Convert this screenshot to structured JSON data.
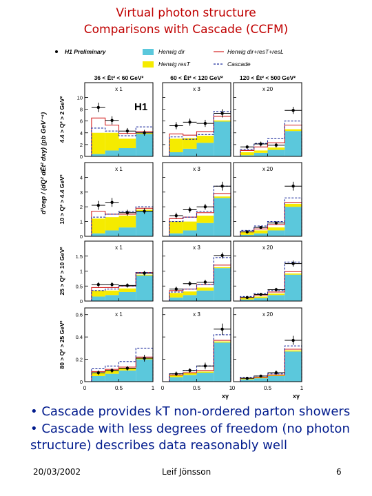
{
  "slide": {
    "title_line1": "Virtual photon structure",
    "title_line2": "Comparisons with Cascade (CCFM)",
    "bullet1": "• Cascade provides kT non-ordered parton showers",
    "bullet2": "• Cascade with less degrees of freedom (no photon structure) describes data reasonably well",
    "footer_date": "20/03/2002",
    "footer_author": "Leif Jönsson",
    "footer_page": "6"
  },
  "chart_data": {
    "type": "bar",
    "xlabel": "xγ",
    "ylabel": "d³σep / (dQ² dĒt² dxγ)  (pb GeV⁻⁴)",
    "logo": "H1",
    "legend": [
      {
        "name": "H1 Preliminary",
        "kind": "data",
        "color": "#000000"
      },
      {
        "name": "Herwig dir",
        "kind": "fill",
        "color": "#5bc8dc"
      },
      {
        "name": "Herwig resT",
        "kind": "fill",
        "color": "#f5eb00"
      },
      {
        "name": "Herwig dir+resT+resL",
        "kind": "line",
        "color": "#d42020"
      },
      {
        "name": "Cascade",
        "kind": "dashed",
        "color": "#1a2a9c"
      }
    ],
    "columns": [
      {
        "label": "36 < Ēt² < 60 GeV²",
        "multiplier": "x 1"
      },
      {
        "label": "60 < Ēt² < 120 GeV²",
        "multiplier": "x 3"
      },
      {
        "label": "120 < Ēt² < 500 GeV²",
        "multiplier": "x 20"
      }
    ],
    "rows": [
      {
        "label": "4.4 > Q² > 2 GeV²",
        "ylim": [
          0,
          12.5
        ],
        "yticks": [
          "0",
          "2",
          "4",
          "6",
          "8",
          "10"
        ]
      },
      {
        "label": "10 > Q² > 4.4 GeV²",
        "ylim": [
          0,
          5
        ],
        "yticks": [
          "0",
          "1",
          "2",
          "3",
          "4"
        ]
      },
      {
        "label": "25 > Q² > 10 GeV²",
        "ylim": [
          0,
          2
        ],
        "yticks": [
          "0",
          "0.5",
          "1",
          "1.5"
        ]
      },
      {
        "label": "80 > Q² > 25 GeV²",
        "ylim": [
          0,
          0.66
        ],
        "yticks": [
          "0",
          "0.2",
          "0.4",
          "0.6"
        ]
      }
    ],
    "xbins": [
      0.1,
      0.3,
      0.5,
      0.75,
      1.0
    ],
    "xticks": [
      "0",
      "0.5",
      "1"
    ],
    "panels": [
      [
        {
          "dir": [
            0.4,
            1.0,
            1.4,
            3.8
          ],
          "resT": [
            3.6,
            3.0,
            1.6,
            0.2
          ],
          "total": [
            6.5,
            5.3,
            3.9,
            4.2
          ],
          "cascade": [
            4.8,
            4.3,
            3.5,
            5.0
          ],
          "data": [
            8.3,
            6.1,
            4.3,
            4.0
          ],
          "err": [
            0.8,
            0.7,
            0.5,
            0.5
          ]
        },
        {
          "dir": [
            0.7,
            1.3,
            2.3,
            5.9
          ],
          "resT": [
            2.3,
            1.8,
            1.2,
            0.2
          ],
          "total": [
            3.8,
            3.6,
            4.2,
            6.8
          ],
          "cascade": [
            3.3,
            2.9,
            3.7,
            7.6
          ],
          "data": [
            5.2,
            5.8,
            5.6,
            7.3
          ],
          "err": [
            0.6,
            0.6,
            0.6,
            0.7
          ]
        },
        {
          "dir": [
            0.2,
            0.6,
            1.1,
            4.3
          ],
          "resT": [
            0.5,
            0.4,
            0.4,
            0.3
          ],
          "total": [
            1.0,
            1.6,
            2.3,
            5.3
          ],
          "cascade": [
            1.2,
            2.2,
            3.0,
            6.0
          ],
          "data": [
            1.6,
            2.1,
            1.9,
            7.8
          ],
          "err": [
            0.3,
            0.4,
            0.4,
            0.6
          ]
        }
      ],
      [
        {
          "dir": [
            0.2,
            0.4,
            0.6,
            1.7
          ],
          "resT": [
            1.0,
            0.9,
            0.8,
            0.1
          ],
          "total": [
            1.7,
            1.5,
            1.5,
            1.9
          ],
          "cascade": [
            1.3,
            1.5,
            1.7,
            2.0
          ],
          "data": [
            2.1,
            2.3,
            1.6,
            1.7
          ],
          "err": [
            0.3,
            0.3,
            0.2,
            0.2
          ]
        },
        {
          "dir": [
            0.2,
            0.4,
            0.9,
            2.6
          ],
          "resT": [
            0.8,
            0.6,
            0.5,
            0.1
          ],
          "total": [
            1.2,
            1.3,
            1.6,
            2.9
          ],
          "cascade": [
            1.0,
            1.3,
            1.7,
            3.4
          ],
          "data": [
            1.4,
            1.8,
            2.0,
            3.4
          ],
          "err": [
            0.2,
            0.2,
            0.2,
            0.3
          ]
        },
        {
          "dir": [
            0.1,
            0.2,
            0.4,
            2.0
          ],
          "resT": [
            0.2,
            0.2,
            0.2,
            0.2
          ],
          "total": [
            0.3,
            0.5,
            0.8,
            2.3
          ],
          "cascade": [
            0.4,
            0.7,
            1.0,
            2.6
          ],
          "data": [
            0.3,
            0.6,
            0.9,
            3.4
          ],
          "err": [
            0.1,
            0.1,
            0.1,
            0.3
          ]
        }
      ],
      [
        {
          "dir": [
            0.15,
            0.2,
            0.3,
            0.85
          ],
          "resT": [
            0.2,
            0.15,
            0.12,
            0.03
          ],
          "total": [
            0.45,
            0.45,
            0.5,
            0.95
          ],
          "cascade": [
            0.35,
            0.4,
            0.5,
            0.95
          ],
          "data": [
            0.55,
            0.55,
            0.52,
            0.93
          ],
          "err": [
            0.08,
            0.08,
            0.07,
            0.08
          ]
        },
        {
          "dir": [
            0.12,
            0.2,
            0.35,
            1.1
          ],
          "resT": [
            0.15,
            0.12,
            0.1,
            0.03
          ],
          "total": [
            0.35,
            0.4,
            0.55,
            1.2
          ],
          "cascade": [
            0.3,
            0.4,
            0.55,
            1.45
          ],
          "data": [
            0.4,
            0.58,
            0.63,
            1.52
          ],
          "err": [
            0.08,
            0.08,
            0.08,
            0.1
          ]
        },
        {
          "dir": [
            0.05,
            0.1,
            0.2,
            0.88
          ],
          "resT": [
            0.05,
            0.05,
            0.05,
            0.04
          ],
          "total": [
            0.12,
            0.2,
            0.3,
            0.98
          ],
          "cascade": [
            0.15,
            0.25,
            0.35,
            1.3
          ],
          "data": [
            0.12,
            0.22,
            0.38,
            1.25
          ],
          "err": [
            0.04,
            0.05,
            0.06,
            0.1
          ]
        }
      ],
      [
        {
          "dir": [
            0.05,
            0.07,
            0.1,
            0.2
          ],
          "resT": [
            0.03,
            0.03,
            0.02,
            0.01
          ],
          "total": [
            0.09,
            0.11,
            0.13,
            0.22
          ],
          "cascade": [
            0.12,
            0.14,
            0.18,
            0.3
          ],
          "data": [
            0.08,
            0.1,
            0.12,
            0.21
          ],
          "err": [
            0.02,
            0.02,
            0.02,
            0.03
          ]
        },
        {
          "dir": [
            0.04,
            0.06,
            0.08,
            0.35
          ],
          "resT": [
            0.02,
            0.02,
            0.01,
            0.01
          ],
          "total": [
            0.06,
            0.08,
            0.1,
            0.37
          ],
          "cascade": [
            0.07,
            0.1,
            0.14,
            0.42
          ],
          "data": [
            0.07,
            0.1,
            0.14,
            0.47
          ],
          "err": [
            0.02,
            0.02,
            0.03,
            0.05
          ]
        },
        {
          "dir": [
            0.02,
            0.03,
            0.05,
            0.27
          ],
          "resT": [
            0.01,
            0.01,
            0.01,
            0.01
          ],
          "total": [
            0.03,
            0.04,
            0.06,
            0.29
          ],
          "cascade": [
            0.04,
            0.05,
            0.07,
            0.32
          ],
          "data": [
            0.03,
            0.05,
            0.08,
            0.37
          ],
          "err": [
            0.01,
            0.01,
            0.02,
            0.04
          ]
        }
      ]
    ]
  }
}
